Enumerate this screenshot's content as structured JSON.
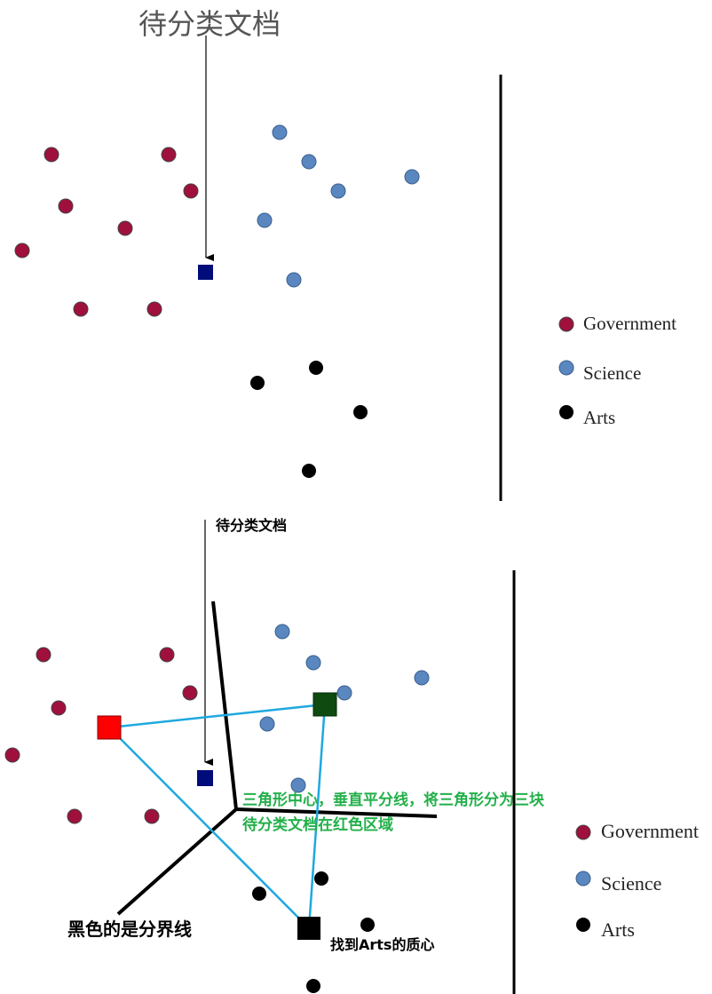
{
  "colors": {
    "government": "#a0103c",
    "science": "#5b87c0",
    "arts": "#000000",
    "doc": "#000c7a",
    "centroid_gov": "#ff0000",
    "centroid_sci": "#0f4a10",
    "centroid_arts": "#000000",
    "triangle": "#1fa8e0",
    "annotation": "#22b04a"
  },
  "top_panel": {
    "title": "待分类文档"
  },
  "bottom_panel": {
    "doc_label": "待分类文档",
    "note_line1": "三角形中心，垂直平分线，将三角形分为三块",
    "note_line2": "待分类文档在红色区域",
    "boundary_label": "黑色的是分界线",
    "centroid_label": "找到Arts的质心"
  },
  "legend": {
    "items": [
      {
        "label": "Government",
        "color": "#a0103c"
      },
      {
        "label": "Science",
        "color": "#5b87c0"
      },
      {
        "label": "Arts",
        "color": "#000000"
      }
    ]
  }
}
